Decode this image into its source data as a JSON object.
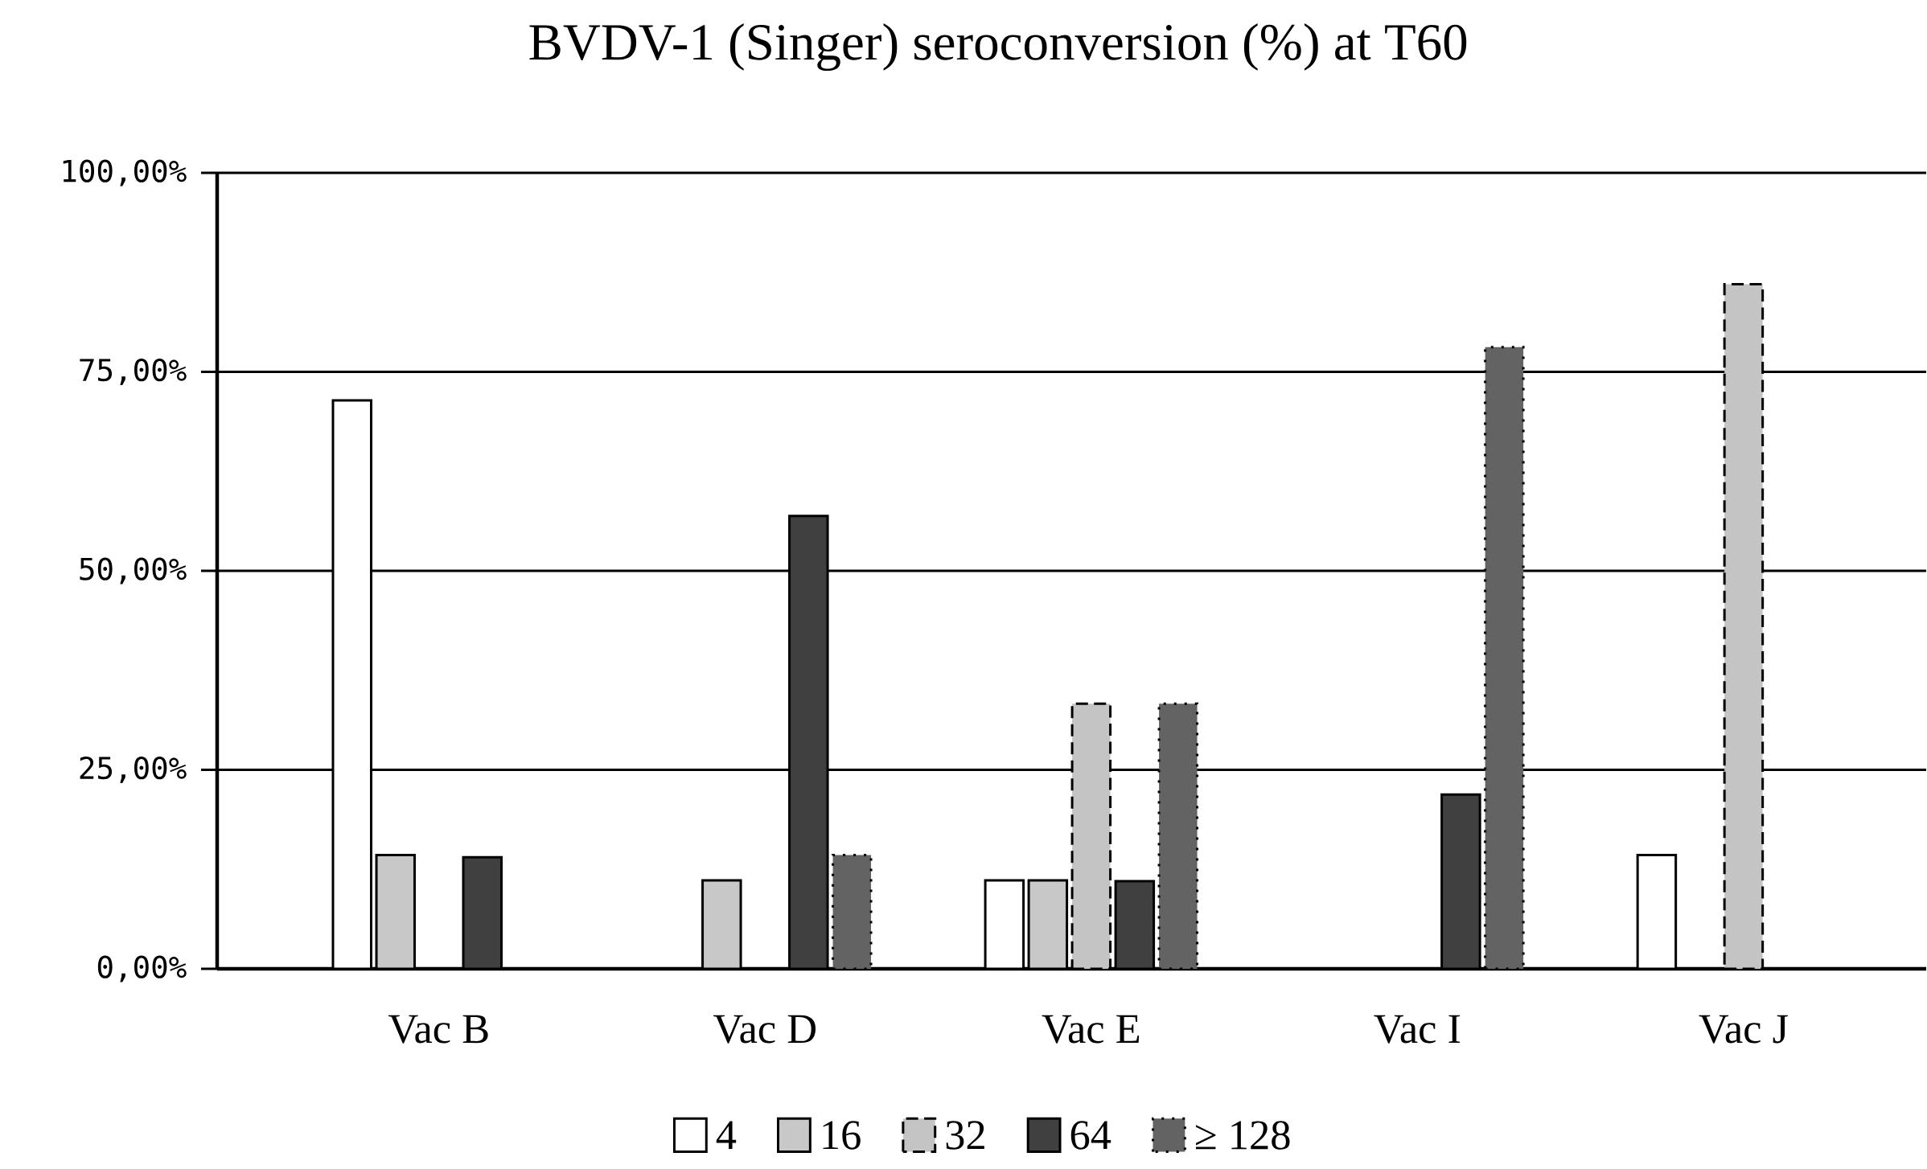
{
  "chart_data": {
    "type": "bar",
    "title": "BVDV-1 (Singer) seroconversion (%) at T60",
    "categories": [
      "Vac B",
      "Vac D",
      "Vac E",
      "Vac I",
      "Vac J"
    ],
    "series": [
      {
        "name": "4",
        "color": "#ffffff",
        "values": [
          71.4,
          null,
          11.1,
          null,
          14.3
        ]
      },
      {
        "name": "16",
        "color": "#c8c8c8",
        "values": [
          14.3,
          11.1,
          11.1,
          null,
          null
        ]
      },
      {
        "name": "32",
        "color": "#c4c4c4",
        "line_style": "dashed",
        "values": [
          null,
          null,
          33.3,
          null,
          86.0
        ]
      },
      {
        "name": "64",
        "color": "#404040",
        "values": [
          14.0,
          56.9,
          11.0,
          21.9,
          null
        ]
      },
      {
        "name": "≥ 128",
        "color": "#636363",
        "line_style": "dotted",
        "values": [
          null,
          14.3,
          33.3,
          78.1,
          null
        ]
      }
    ],
    "ylim": [
      0,
      100
    ],
    "yticks": [
      {
        "value": 0,
        "label": "0,00%"
      },
      {
        "value": 25,
        "label": "25,00%"
      },
      {
        "value": 50,
        "label": "50,00%"
      },
      {
        "value": 75,
        "label": "75,00%"
      },
      {
        "value": 100,
        "label": "100,00%"
      }
    ],
    "grid": "y",
    "legend": "bottom"
  }
}
